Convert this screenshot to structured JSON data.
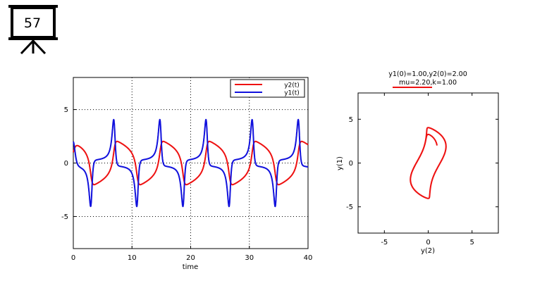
{
  "slide": {
    "number": "57"
  },
  "chart_data": [
    {
      "type": "line",
      "title": "",
      "xlabel": "time",
      "ylabel": "",
      "xlim": [
        0,
        40
      ],
      "ylim": [
        -8,
        8
      ],
      "xticks": [
        0,
        10,
        20,
        30,
        40
      ],
      "yticks": [
        -5,
        0,
        5
      ],
      "grid": "dotted",
      "legend": "top-right",
      "series": [
        {
          "name": "y2(t)",
          "color": "#ee1111",
          "description_values": "periodic, range about -2 to 2, period about 7.9",
          "y_range": [
            -2.0,
            2.0
          ]
        },
        {
          "name": "y1(t)",
          "color": "#1111dd",
          "y_range": [
            -4.0,
            4.0
          ]
        }
      ],
      "period": 7.9,
      "mu": 2.2,
      "y1_0": 1.0,
      "y2_0": 2.0
    },
    {
      "type": "line",
      "title": "y1(0)=1.00,y2(0)=2.00",
      "subtitle": "mu=2.20,k=1.00",
      "xlabel": "y(2)",
      "ylabel": "y(1)",
      "xlim": [
        -8,
        8
      ],
      "ylim": [
        -8,
        8
      ],
      "xticks": [
        -5,
        0,
        5
      ],
      "yticks": [
        -5,
        0,
        5
      ],
      "grid": "off",
      "series": [
        {
          "name": "",
          "color": "#ee1111"
        }
      ]
    }
  ]
}
